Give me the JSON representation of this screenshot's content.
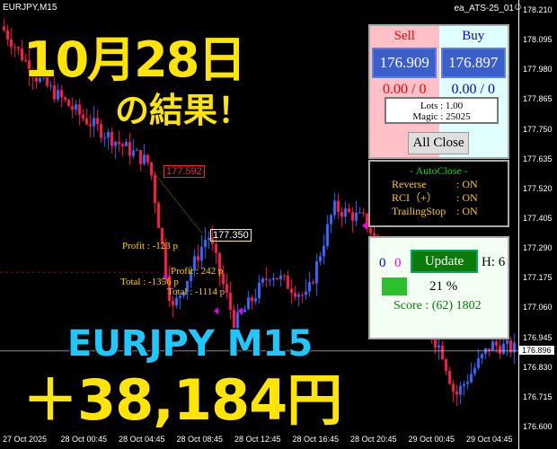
{
  "header": {
    "symbol": "EURJPY,M15",
    "ea_name": "ea_ATS-25_01",
    "ea_icon": "smiley-icon"
  },
  "overlay": {
    "date": "10月28日",
    "result": "の結果！",
    "pair_tf": "EURJPY  M15",
    "profit": "＋38,184円"
  },
  "panel": {
    "sell_label": "Sell",
    "buy_label": "Buy",
    "sell_price": "176.909",
    "buy_price": "176.897",
    "sell_pl": "0.00 / 0",
    "buy_pl": "0.00 / 0",
    "lots": "Lots   : 1.00",
    "magic": "Magic : 25025",
    "all_close": "All Close"
  },
  "autoclose": {
    "title": "- AutoClose -",
    "rows": [
      {
        "k": "Reverse",
        "v": ": ON"
      },
      {
        "k": "RCI（+）",
        "v": ": ON"
      },
      {
        "k": "TrailingStop",
        "v": ": ON"
      }
    ]
  },
  "score": {
    "count_blue": "0",
    "count_magenta": "0",
    "update": "Update",
    "h": "H: 6",
    "percent": "21 %",
    "progress": 21,
    "score": "Score : (62) 1802"
  },
  "annotations": {
    "price_red": "177.592",
    "price_white": "177.350",
    "profit1": "Profit : -123 p",
    "total1": "Total : -1356 p",
    "profit2": "Profit : 242 p",
    "total2": "Total : -1114 p"
  },
  "price_axis": [
    "178.210",
    "178.095",
    "177.980",
    "177.865",
    "177.750",
    "177.635",
    "177.520",
    "177.405",
    "177.290",
    "177.175",
    "177.060",
    "176.945",
    "176.830",
    "176.715",
    "176.600"
  ],
  "current_price": "176.896",
  "time_axis": [
    "27 Oct 2025",
    "28 Oct 00:45",
    "28 Oct 04:45",
    "28 Oct 08:45",
    "28 Oct 12:45",
    "28 Oct 16:45",
    "28 Oct 20:45",
    "29 Oct 00:45",
    "29 Oct 04:45"
  ],
  "colors": {
    "bull": "#3c6cff",
    "bear": "#ff2050",
    "overlay_yellow": "#ffe500",
    "overlay_cyan": "#1ec8ff"
  }
}
